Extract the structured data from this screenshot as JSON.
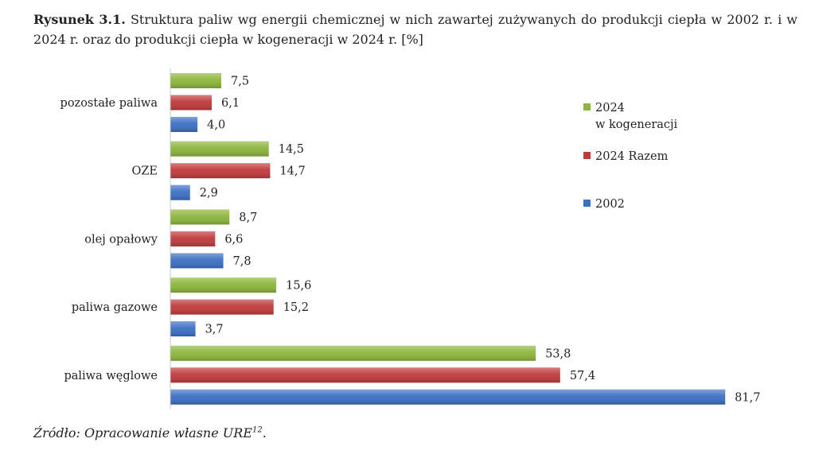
{
  "figure": {
    "label": "Rysunek 3.1.",
    "caption": "Struktura paliw wg energii chemicznej w nich zawartej zużywanych do produkcji ciepła w 2002 r. i w 2024 r. oraz do produkcji ciepła w kogeneracji w 2024 r. [%]",
    "source_text": "Źródło: Opracowanie własne URE",
    "source_footnote": "12",
    "source_end": "."
  },
  "chart_data": {
    "type": "bar",
    "orientation": "horizontal",
    "title": "Struktura paliw wg energii chemicznej w nich zawartej zużywanych do produkcji ciepła w 2002 r. i w 2024 r. oraz do produkcji ciepła w kogeneracji w 2024 r. [%]",
    "xlabel": "",
    "ylabel": "",
    "xlim": [
      0,
      90
    ],
    "grid": false,
    "axis_line": "left",
    "legend_position": "right",
    "value_format": "comma-decimal",
    "categories": [
      "pozostałe paliwa",
      "OZE",
      "olej opałowy",
      "paliwa gazowe",
      "paliwa węglowe"
    ],
    "series": [
      {
        "name": "2024 w kogeneracji",
        "legend_lines": [
          "2024",
          "w kogeneracji"
        ],
        "color": "#8cb53b",
        "values": [
          7.5,
          14.5,
          8.7,
          15.6,
          53.8
        ]
      },
      {
        "name": "2024 Razem",
        "legend_lines": [
          "2024 Razem"
        ],
        "color": "#c0393b",
        "values": [
          6.1,
          14.7,
          6.6,
          15.2,
          57.4
        ]
      },
      {
        "name": "2002",
        "legend_lines": [
          "2002"
        ],
        "color": "#3b6fc4",
        "values": [
          4.0,
          2.9,
          7.8,
          3.7,
          81.7
        ]
      }
    ]
  }
}
